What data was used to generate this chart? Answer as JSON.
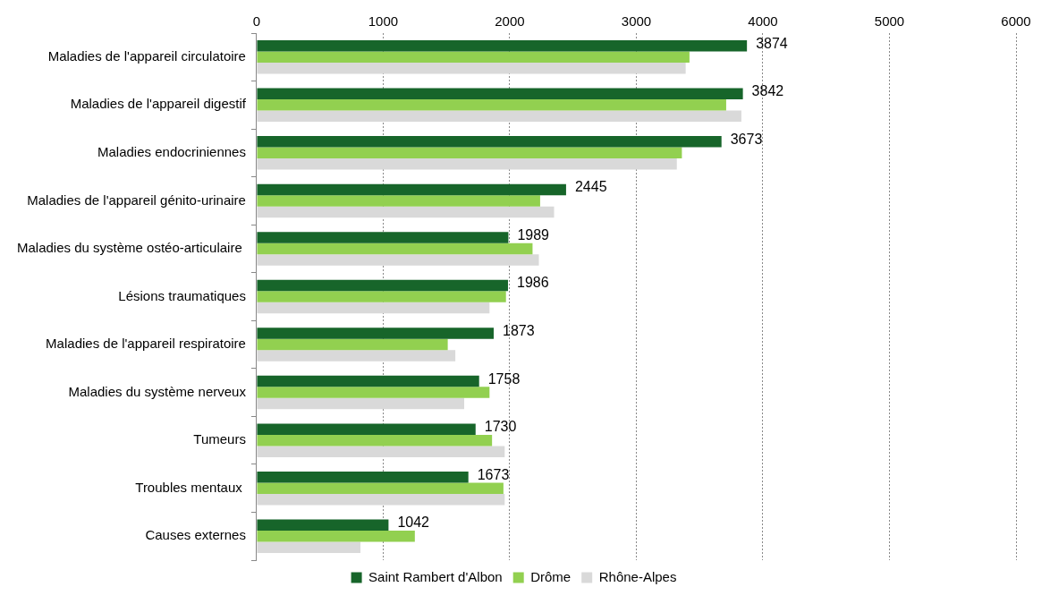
{
  "chart_data": {
    "type": "bar",
    "orientation": "horizontal",
    "categories": [
      "Maladies de l'appareil circulatoire",
      "Maladies de l'appareil digestif",
      "Maladies endocriniennes",
      "Maladies de l'appareil génito-urinaire",
      "Maladies du système ostéo-articulaire ",
      "Lésions traumatiques",
      "Maladies de l'appareil respiratoire",
      "Maladies du système nerveux",
      "Tumeurs",
      "Troubles mentaux ",
      "Causes externes"
    ],
    "series": [
      {
        "name": "Saint Rambert d'Albon",
        "color": "#17652a",
        "values": [
          3874,
          3842,
          3673,
          2445,
          1989,
          1986,
          1873,
          1758,
          1730,
          1673,
          1042
        ],
        "value_labels": [
          "3874",
          "3842",
          "3673",
          "2445",
          "1989",
          "1986",
          "1873",
          "1758",
          "1730",
          "1673",
          "1042"
        ]
      },
      {
        "name": "Drôme",
        "color": "#92d050",
        "values": [
          3420,
          3710,
          3360,
          2240,
          2180,
          1970,
          1510,
          1840,
          1860,
          1950,
          1250
        ]
      },
      {
        "name": "Rhône-Alpes",
        "color": "#d9d9d9",
        "values": [
          3390,
          3830,
          3320,
          2350,
          2230,
          1840,
          1570,
          1640,
          1960,
          1960,
          820
        ]
      }
    ],
    "xlim": [
      0,
      6000
    ],
    "xticks": [
      0,
      1000,
      2000,
      3000,
      4000,
      5000,
      6000
    ],
    "grid": "x",
    "legend": "bottom"
  }
}
